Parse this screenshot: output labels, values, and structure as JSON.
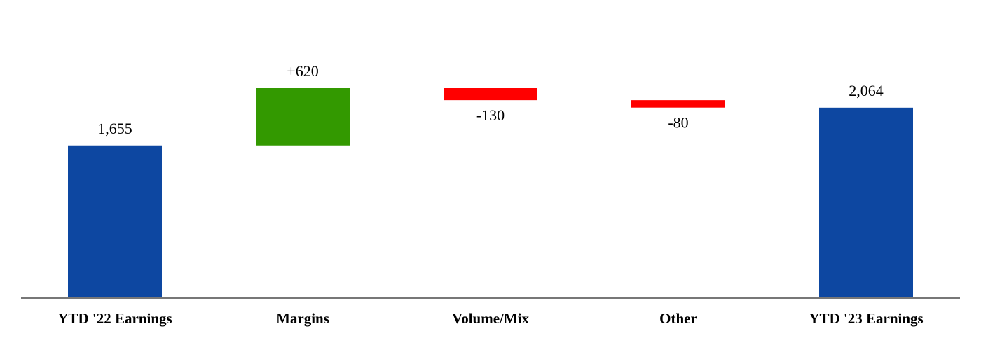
{
  "chart_data": {
    "type": "waterfall",
    "categories": [
      "YTD '22 Earnings",
      "Margins",
      "Volume/Mix",
      "Other",
      "YTD '23 Earnings"
    ],
    "values": [
      1655,
      620,
      -130,
      -80,
      2064
    ],
    "value_labels": [
      "1,655",
      "+620",
      "-130",
      "-80",
      "2,064"
    ],
    "colors": [
      "#0d47a1",
      "#339900",
      "#ff0000",
      "#ff0000",
      "#0d47a1"
    ]
  }
}
